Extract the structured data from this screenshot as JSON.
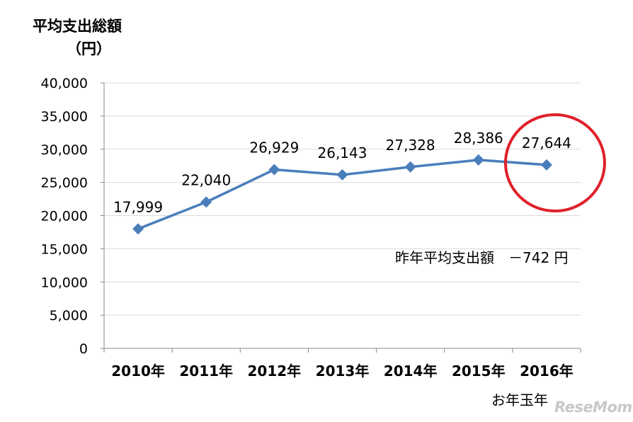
{
  "chart_data": {
    "type": "line",
    "title": "平均支出総額",
    "ylabel_unit": "（円）",
    "categories": [
      "2010年",
      "2011年",
      "2012年",
      "2013年",
      "2014年",
      "2015年",
      "2016年"
    ],
    "values": [
      17999,
      22040,
      26929,
      26143,
      27328,
      28386,
      27644
    ],
    "data_labels": [
      "17,999",
      "22,040",
      "26,929",
      "26,143",
      "27,328",
      "28,386",
      "27,644"
    ],
    "ylim": [
      0,
      40000
    ],
    "yticks": [
      0,
      5000,
      10000,
      15000,
      20000,
      25000,
      30000,
      35000,
      40000
    ],
    "ytick_labels": [
      "0",
      "5,000",
      "10,000",
      "15,000",
      "20,000",
      "25,000",
      "30,000",
      "35,000",
      "40,000"
    ],
    "grid": true,
    "line_color": "#4a7ebb",
    "highlight_category": "2016年",
    "highlight_color": "#e0202a",
    "annotation": "昨年平均支出額　－742 円",
    "sublabel": "お年玉年"
  },
  "watermark": "ReseMom"
}
